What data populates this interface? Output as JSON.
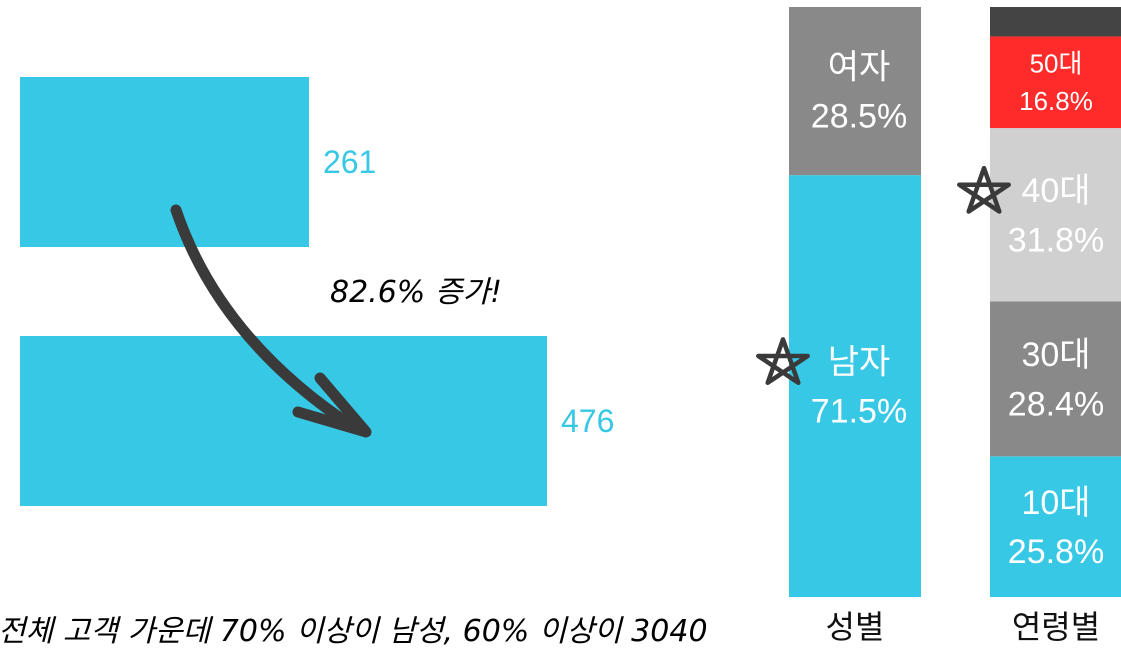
{
  "colors": {
    "cyan": "#36C8E4",
    "dark": "#3a3a3a",
    "gray": "#898989",
    "light_gray": "#d0d0d0",
    "red": "#FF2A2A",
    "charcoal": "#444444",
    "white": "#ffffff"
  },
  "chart_data": [
    {
      "type": "bar",
      "orientation": "horizontal",
      "categories": [
        "",
        ""
      ],
      "values": [
        261,
        476
      ],
      "value_labels": [
        "261",
        "476"
      ],
      "annotation": "82.6% 증가!",
      "annotation_icon": "curved-arrow-icon"
    },
    {
      "type": "bar",
      "stacked": true,
      "categories": [
        "성별",
        "연령별"
      ],
      "series": [
        {
          "category": "성별",
          "segments": [
            {
              "name": "남자",
              "value": 71.5,
              "label": "71.5%",
              "color": "#36C8E4",
              "text_color": "#ffffff",
              "starred": true
            },
            {
              "name": "여자",
              "value": 28.5,
              "label": "28.5%",
              "color": "#898989",
              "text_color": "#ffffff",
              "starred": false
            }
          ]
        },
        {
          "category": "연령별",
          "segments": [
            {
              "name": "10대",
              "value": 25.8,
              "label": "25.8%",
              "color": "#36C8E4",
              "text_color": "#ffffff",
              "starred": false
            },
            {
              "name": "30대",
              "value": 28.4,
              "label": "28.4%",
              "color": "#898989",
              "text_color": "#ffffff",
              "starred": false
            },
            {
              "name": "40대",
              "value": 31.8,
              "label": "31.8%",
              "color": "#d0d0d0",
              "text_color": "#ffffff",
              "starred": true
            },
            {
              "name": "50대",
              "value": 16.8,
              "label": "16.8%",
              "color": "#FF2A2A",
              "text_color": "#ffffff",
              "starred": false
            },
            {
              "name": "",
              "value": 5.4,
              "label": "",
              "color": "#444444",
              "text_color": "#ffffff",
              "starred": false
            }
          ]
        }
      ]
    }
  ],
  "footnote": "전체 고객 가운데 70% 이상이 남성, 60% 이상이 3040"
}
